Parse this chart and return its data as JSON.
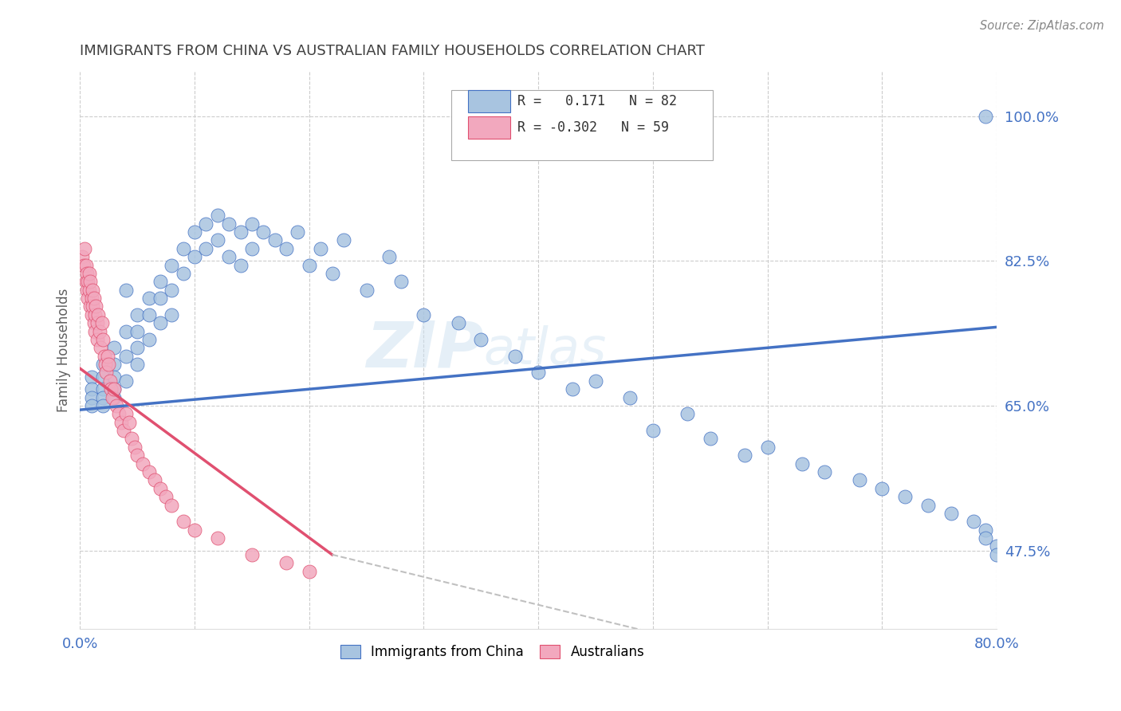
{
  "title": "IMMIGRANTS FROM CHINA VS AUSTRALIAN FAMILY HOUSEHOLDS CORRELATION CHART",
  "source": "Source: ZipAtlas.com",
  "ylabel": "Family Households",
  "legend_label1": "Immigrants from China",
  "legend_label2": "Australians",
  "watermark": "ZIPatlas",
  "color_china": "#a8c4e0",
  "color_australia": "#f2a8be",
  "color_china_line": "#4472c4",
  "color_australia_line": "#e05070",
  "color_trend_dashed": "#c0c0c0",
  "axis_label_color": "#4472c4",
  "china_scatter_x": [
    0.01,
    0.01,
    0.01,
    0.01,
    0.02,
    0.02,
    0.02,
    0.02,
    0.02,
    0.03,
    0.03,
    0.03,
    0.03,
    0.03,
    0.04,
    0.04,
    0.04,
    0.04,
    0.05,
    0.05,
    0.05,
    0.05,
    0.06,
    0.06,
    0.06,
    0.07,
    0.07,
    0.07,
    0.08,
    0.08,
    0.08,
    0.09,
    0.09,
    0.1,
    0.1,
    0.11,
    0.11,
    0.12,
    0.12,
    0.13,
    0.13,
    0.14,
    0.14,
    0.15,
    0.15,
    0.16,
    0.17,
    0.18,
    0.19,
    0.2,
    0.21,
    0.22,
    0.23,
    0.25,
    0.27,
    0.28,
    0.3,
    0.33,
    0.35,
    0.38,
    0.4,
    0.43,
    0.45,
    0.48,
    0.5,
    0.53,
    0.55,
    0.58,
    0.6,
    0.63,
    0.65,
    0.68,
    0.7,
    0.72,
    0.74,
    0.76,
    0.78,
    0.79,
    0.79,
    0.8,
    0.8,
    0.79
  ],
  "china_scatter_y": [
    0.685,
    0.67,
    0.66,
    0.65,
    0.7,
    0.685,
    0.67,
    0.66,
    0.65,
    0.72,
    0.7,
    0.685,
    0.67,
    0.66,
    0.79,
    0.74,
    0.71,
    0.68,
    0.76,
    0.74,
    0.72,
    0.7,
    0.78,
    0.76,
    0.73,
    0.8,
    0.78,
    0.75,
    0.82,
    0.79,
    0.76,
    0.84,
    0.81,
    0.86,
    0.83,
    0.87,
    0.84,
    0.88,
    0.85,
    0.87,
    0.83,
    0.86,
    0.82,
    0.87,
    0.84,
    0.86,
    0.85,
    0.84,
    0.86,
    0.82,
    0.84,
    0.81,
    0.85,
    0.79,
    0.83,
    0.8,
    0.76,
    0.75,
    0.73,
    0.71,
    0.69,
    0.67,
    0.68,
    0.66,
    0.62,
    0.64,
    0.61,
    0.59,
    0.6,
    0.58,
    0.57,
    0.56,
    0.55,
    0.54,
    0.53,
    0.52,
    0.51,
    0.5,
    0.49,
    0.48,
    0.47,
    1.0
  ],
  "australia_scatter_x": [
    0.002,
    0.003,
    0.004,
    0.005,
    0.005,
    0.006,
    0.006,
    0.007,
    0.007,
    0.008,
    0.008,
    0.009,
    0.009,
    0.01,
    0.01,
    0.011,
    0.011,
    0.012,
    0.012,
    0.013,
    0.013,
    0.014,
    0.015,
    0.015,
    0.016,
    0.017,
    0.018,
    0.019,
    0.02,
    0.021,
    0.022,
    0.023,
    0.024,
    0.025,
    0.026,
    0.027,
    0.028,
    0.03,
    0.032,
    0.034,
    0.036,
    0.038,
    0.04,
    0.043,
    0.045,
    0.048,
    0.05,
    0.055,
    0.06,
    0.065,
    0.07,
    0.075,
    0.08,
    0.09,
    0.1,
    0.12,
    0.15,
    0.18,
    0.2
  ],
  "australia_scatter_y": [
    0.83,
    0.82,
    0.84,
    0.8,
    0.82,
    0.81,
    0.79,
    0.8,
    0.78,
    0.81,
    0.79,
    0.77,
    0.8,
    0.78,
    0.76,
    0.79,
    0.77,
    0.75,
    0.78,
    0.76,
    0.74,
    0.77,
    0.75,
    0.73,
    0.76,
    0.74,
    0.72,
    0.75,
    0.73,
    0.71,
    0.7,
    0.69,
    0.71,
    0.7,
    0.68,
    0.67,
    0.66,
    0.67,
    0.65,
    0.64,
    0.63,
    0.62,
    0.64,
    0.63,
    0.61,
    0.6,
    0.59,
    0.58,
    0.57,
    0.56,
    0.55,
    0.54,
    0.53,
    0.51,
    0.5,
    0.49,
    0.47,
    0.46,
    0.45
  ],
  "xmin": 0.0,
  "xmax": 0.8,
  "ymin": 0.38,
  "ymax": 1.055,
  "ytick_values": [
    0.475,
    0.65,
    0.825,
    1.0
  ],
  "ytick_labels": [
    "47.5%",
    "65.0%",
    "82.5%",
    "100.0%"
  ],
  "china_line_x": [
    0.0,
    0.8
  ],
  "china_line_y": [
    0.645,
    0.745
  ],
  "australia_line_x": [
    0.0,
    0.22
  ],
  "australia_line_y": [
    0.695,
    0.47
  ],
  "dashed_line_x": [
    0.22,
    0.65
  ],
  "dashed_line_y": [
    0.47,
    0.325
  ]
}
